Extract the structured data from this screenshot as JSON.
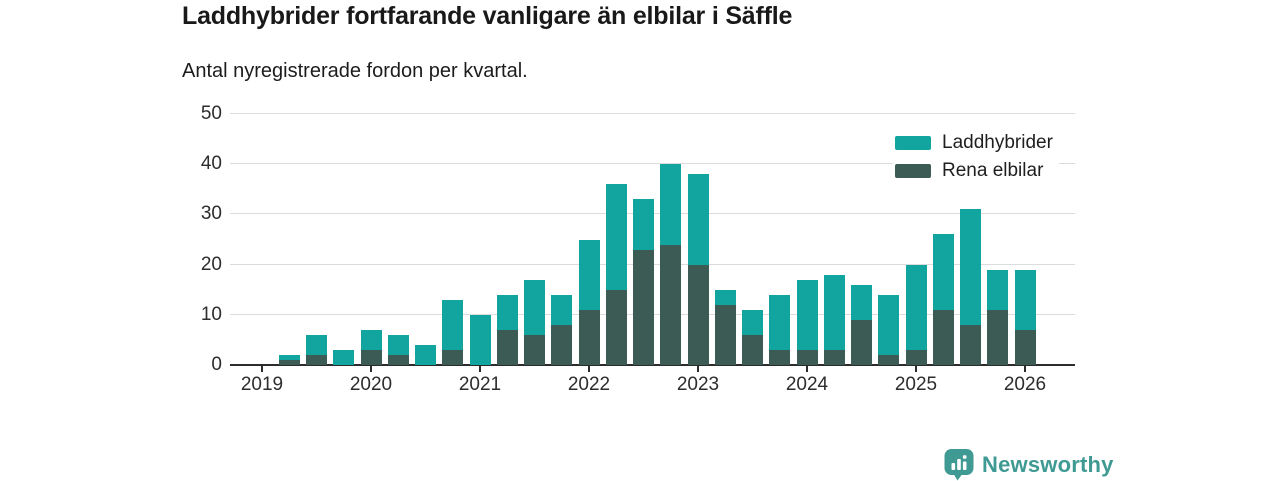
{
  "header": {
    "title": "Laddhybrider fortfarande vanligare än elbilar i Säffle",
    "subtitle": "Antal nyregistrerade fordon per kvartal."
  },
  "legend": [
    {
      "label": "Laddhybrider",
      "color": "#12a59f"
    },
    {
      "label": "Rena elbilar",
      "color": "#3c5b54"
    }
  ],
  "colors": {
    "laddhybrider": "#12a59f",
    "rena_elbilar": "#3c5b54",
    "gridline": "#dcdcdc",
    "axis": "#2c2c2c",
    "brand_teal": "#3f9a93"
  },
  "footer": {
    "brand": "Newsworthy"
  },
  "chart_data": {
    "type": "bar",
    "stacked": true,
    "title": "Laddhybrider fortfarande vanligare än elbilar i Säffle",
    "subtitle": "Antal nyregistrerade fordon per kvartal.",
    "ylabel": "",
    "xlabel": "",
    "ylim": [
      0,
      50
    ],
    "y_ticks": [
      0,
      10,
      20,
      30,
      40,
      50
    ],
    "x_tick_labels": [
      "2019",
      "2020",
      "2021",
      "2022",
      "2023",
      "2024",
      "2025",
      "2026"
    ],
    "grid": true,
    "legend_position": "top-right",
    "categories": [
      "2019 Q2",
      "2019 Q3",
      "2019 Q4",
      "2020 Q1",
      "2020 Q2",
      "2020 Q3",
      "2020 Q4",
      "2021 Q1",
      "2021 Q2",
      "2021 Q3",
      "2021 Q4",
      "2022 Q1",
      "2022 Q2",
      "2022 Q3",
      "2022 Q4",
      "2023 Q1",
      "2023 Q2",
      "2023 Q3",
      "2023 Q4",
      "2024 Q1",
      "2024 Q2",
      "2024 Q3",
      "2024 Q4",
      "2025 Q1",
      "2025 Q2",
      "2025 Q3",
      "2025 Q4",
      "2026 Q1"
    ],
    "series": [
      {
        "name": "Rena elbilar",
        "color": "#3c5b54",
        "values": [
          1,
          2,
          0,
          3,
          2,
          0,
          3,
          0,
          7,
          6,
          8,
          11,
          15,
          23,
          24,
          20,
          12,
          6,
          3,
          3,
          3,
          9,
          2,
          3,
          11,
          8,
          11,
          7
        ]
      },
      {
        "name": "Laddhybrider",
        "color": "#12a59f",
        "values": [
          1,
          4,
          3,
          4,
          4,
          4,
          10,
          10,
          7,
          11,
          6,
          14,
          21,
          10,
          16,
          18,
          3,
          5,
          11,
          14,
          15,
          7,
          12,
          17,
          15,
          23,
          8,
          12
        ]
      }
    ],
    "totals": [
      2,
      6,
      3,
      7,
      6,
      4,
      13,
      10,
      14,
      17,
      14,
      25,
      36,
      33,
      40,
      38,
      15,
      11,
      14,
      17,
      18,
      16,
      14,
      20,
      26,
      31,
      19,
      19
    ]
  }
}
